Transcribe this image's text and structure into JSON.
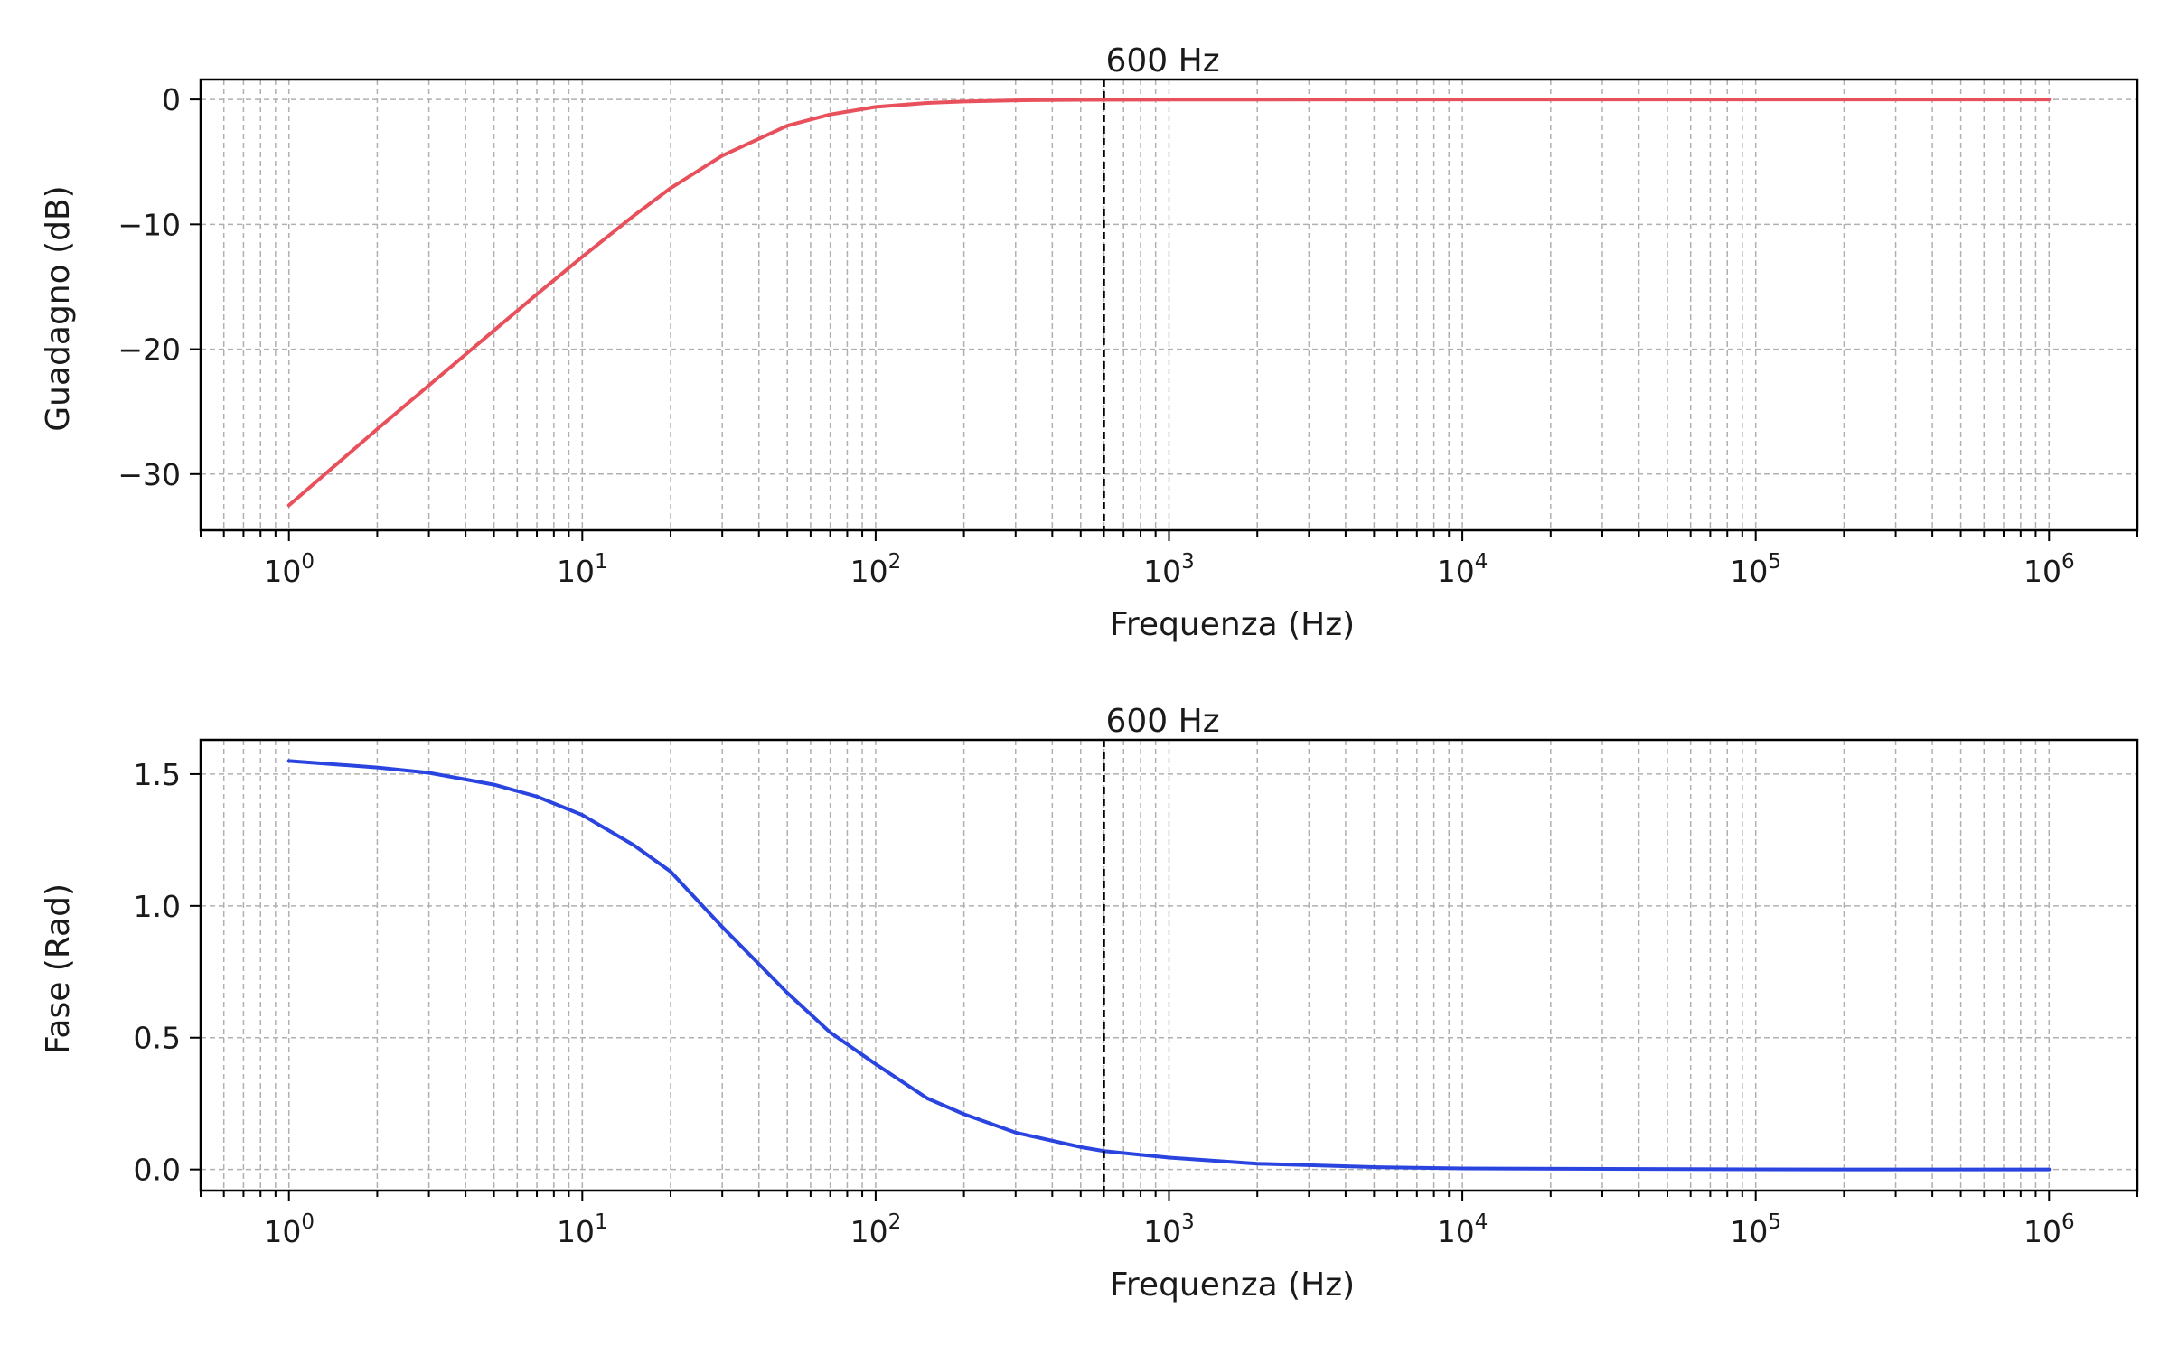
{
  "chart_data": [
    {
      "type": "line",
      "xscale": "log",
      "xlim": [
        0.5,
        2000000
      ],
      "ylim": [
        -34.5,
        1.6
      ],
      "xlabel": "Frequenza (Hz)",
      "ylabel": "Guadagno (dB)",
      "x_ticks": [
        {
          "base": "10",
          "exp": "0",
          "value": 1
        },
        {
          "base": "10",
          "exp": "1",
          "value": 10
        },
        {
          "base": "10",
          "exp": "2",
          "value": 100
        },
        {
          "base": "10",
          "exp": "3",
          "value": 1000
        },
        {
          "base": "10",
          "exp": "4",
          "value": 10000
        },
        {
          "base": "10",
          "exp": "5",
          "value": 100000
        },
        {
          "base": "10",
          "exp": "6",
          "value": 1000000
        }
      ],
      "y_ticks": [
        {
          "label": "0",
          "value": 0
        },
        {
          "label": "−10",
          "value": -10
        },
        {
          "label": "−20",
          "value": -20
        },
        {
          "label": "−30",
          "value": -30
        }
      ],
      "grid": true,
      "marker": {
        "x": 600,
        "label": "600 Hz",
        "style": "dashed",
        "color": "#000000"
      },
      "series": [
        {
          "color": "#e8505b",
          "x": [
            1,
            2,
            3,
            5,
            7,
            10,
            15,
            20,
            30,
            50,
            70,
            100,
            150,
            200,
            300,
            500,
            1000,
            10000,
            100000,
            1000000
          ],
          "y": [
            -32.5,
            -26.4,
            -22.9,
            -18.5,
            -15.6,
            -12.6,
            -9.3,
            -7.1,
            -4.5,
            -2.1,
            -1.2,
            -0.6,
            -0.28,
            -0.16,
            -0.07,
            -0.03,
            -0.01,
            0,
            0,
            0
          ]
        }
      ]
    },
    {
      "type": "line",
      "xscale": "log",
      "xlim": [
        0.5,
        2000000
      ],
      "ylim": [
        -0.08,
        1.63
      ],
      "xlabel": "Frequenza (Hz)",
      "ylabel": "Fase (Rad)",
      "x_ticks": [
        {
          "base": "10",
          "exp": "0",
          "value": 1
        },
        {
          "base": "10",
          "exp": "1",
          "value": 10
        },
        {
          "base": "10",
          "exp": "2",
          "value": 100
        },
        {
          "base": "10",
          "exp": "3",
          "value": 1000
        },
        {
          "base": "10",
          "exp": "4",
          "value": 10000
        },
        {
          "base": "10",
          "exp": "5",
          "value": 100000
        },
        {
          "base": "10",
          "exp": "6",
          "value": 1000000
        }
      ],
      "y_ticks": [
        {
          "label": "0.0",
          "value": 0
        },
        {
          "label": "0.5",
          "value": 0.5
        },
        {
          "label": "1.0",
          "value": 1.0
        },
        {
          "label": "1.5",
          "value": 1.5
        }
      ],
      "grid": true,
      "marker": {
        "x": 600,
        "label": "600 Hz",
        "style": "dashed",
        "color": "#000000"
      },
      "series": [
        {
          "color": "#2a44e0",
          "x": [
            1,
            2,
            3,
            5,
            7,
            10,
            15,
            20,
            30,
            50,
            70,
            100,
            150,
            200,
            300,
            500,
            600,
            1000,
            2000,
            5000,
            10000,
            100000,
            1000000
          ],
          "y": [
            1.55,
            1.525,
            1.505,
            1.46,
            1.415,
            1.345,
            1.23,
            1.13,
            0.92,
            0.67,
            0.52,
            0.4,
            0.27,
            0.21,
            0.14,
            0.085,
            0.07,
            0.045,
            0.022,
            0.009,
            0.004,
            0.0004,
            0.0
          ]
        }
      ]
    }
  ]
}
